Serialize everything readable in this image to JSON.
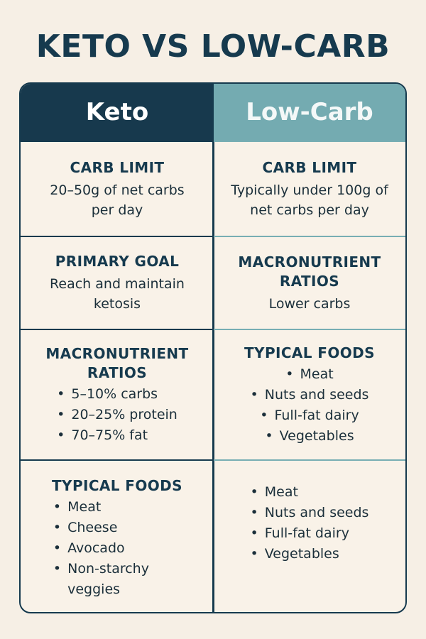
{
  "title": "KETO VS LOW-CARB",
  "columns": {
    "keto": {
      "header": "Keto",
      "rows": [
        {
          "label": "CARB LIMIT",
          "text": "20–50g of net carbs per day"
        },
        {
          "label": "PRIMARY GOAL",
          "text": "Reach and maintain ketosis"
        },
        {
          "label": "MACRONUTRIENT RATIOS",
          "bullets": [
            "5–10% carbs",
            "20–25% protein",
            "70–75% fat"
          ]
        },
        {
          "label": "TYPICAL FOODS",
          "bullets": [
            "Meat",
            "Cheese",
            "Avocado",
            "Non-starchy veggies"
          ]
        }
      ]
    },
    "lowcarb": {
      "header": "Low-Carb",
      "rows": [
        {
          "label": "CARB LIMIT",
          "text": "Typically under 100g of net carbs per day"
        },
        {
          "label": "MACRONUTRIENT RATIOS",
          "text": "Lower carbs"
        },
        {
          "label": "TYPICAL FOODS",
          "bullets": [
            "Meat",
            "Nuts and seeds",
            "Full-fat dairy",
            "Vegetables"
          ]
        },
        {
          "label": "",
          "bullets": [
            "Meat",
            "Nuts and seeds",
            "Full-fat dairy",
            "Vegetables"
          ]
        }
      ]
    }
  },
  "colors": {
    "navy": "#163a4e",
    "teal": "#74abb1",
    "background": "#f6efe5"
  }
}
